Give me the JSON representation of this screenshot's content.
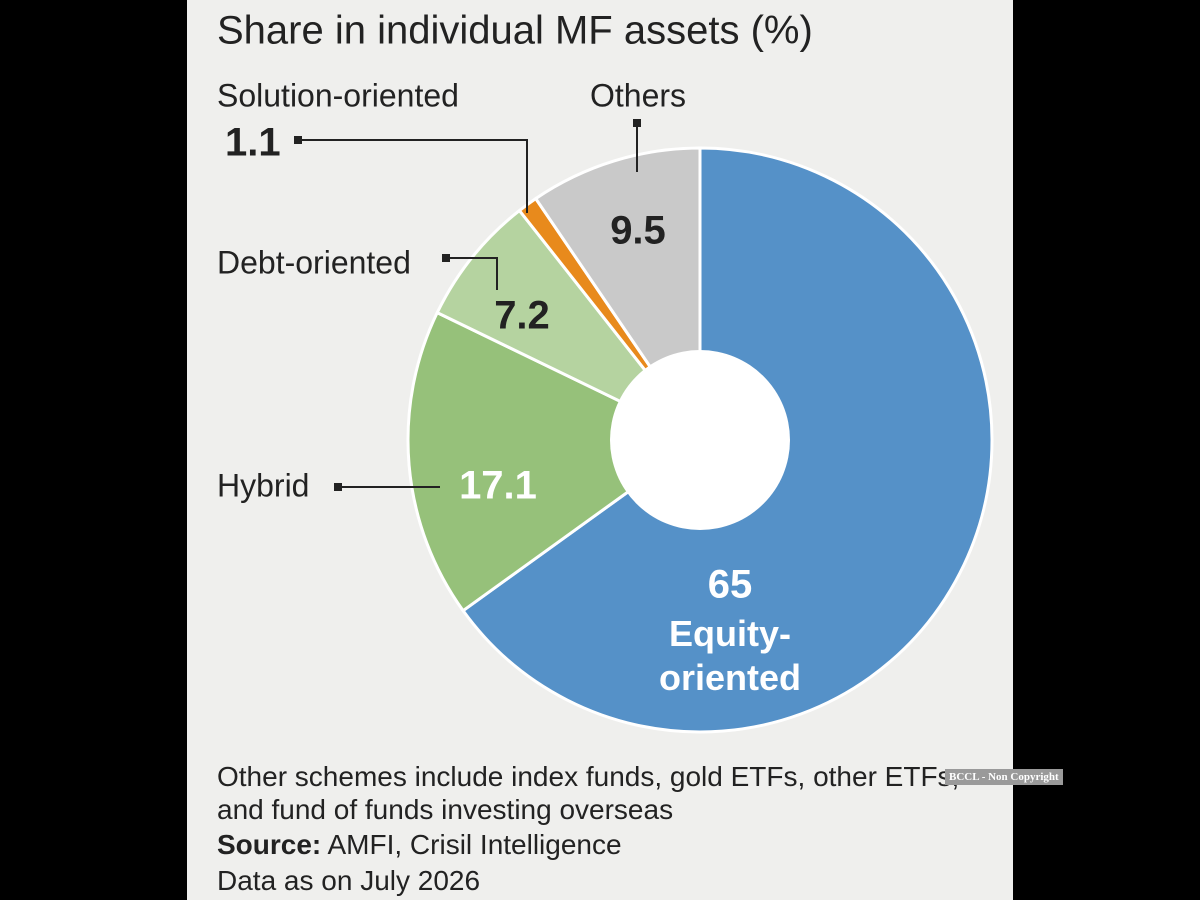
{
  "chart_data": {
    "type": "pie",
    "donut": true,
    "title": "Share in individual MF assets (%)",
    "categories": [
      "Equity-oriented",
      "Hybrid",
      "Debt-oriented",
      "Solution-oriented",
      "Others"
    ],
    "values": [
      65,
      17.1,
      7.2,
      1.1,
      9.5
    ],
    "colors": [
      "#5591c8",
      "#96c17a",
      "#b5d3a0",
      "#e88a1c",
      "#c9c9c9"
    ],
    "note": "Other schemes include index funds, gold ETFs, other ETFs, and fund of funds investing overseas",
    "source_label": "Source:",
    "source": "AMFI, Crisil Intelligence",
    "date_note": "Data as on July 2026"
  },
  "watermark": "BCCL - Non Copyright"
}
